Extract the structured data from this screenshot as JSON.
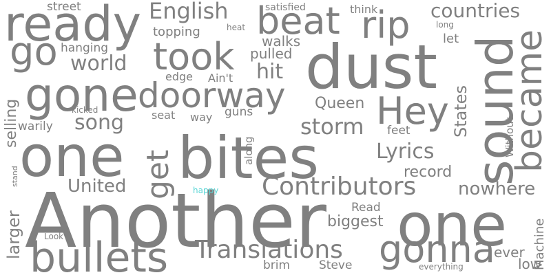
{
  "word_color": "#808080",
  "highlight_color": "#5bd6d6",
  "background_color": "#ffffff",
  "words": [
    {
      "text": "Another"
    },
    {
      "text": "one"
    },
    {
      "text": "bites"
    },
    {
      "text": "one"
    },
    {
      "text": "dust"
    },
    {
      "text": "sound"
    },
    {
      "text": "ready"
    },
    {
      "text": "gone"
    },
    {
      "text": "bullets"
    },
    {
      "text": "doorway"
    },
    {
      "text": "took"
    },
    {
      "text": "beat"
    },
    {
      "text": "gonna"
    },
    {
      "text": "became"
    },
    {
      "text": "Hey"
    },
    {
      "text": "rip"
    },
    {
      "text": "go"
    },
    {
      "text": "get"
    },
    {
      "text": "Contributors"
    },
    {
      "text": "Translations"
    },
    {
      "text": "English"
    },
    {
      "text": "storm"
    },
    {
      "text": "Lyrics"
    },
    {
      "text": "world"
    },
    {
      "text": "countries"
    },
    {
      "text": "song"
    },
    {
      "text": "United"
    },
    {
      "text": "hit"
    },
    {
      "text": "nowhere"
    },
    {
      "text": "Queen"
    },
    {
      "text": "States"
    },
    {
      "text": "record"
    },
    {
      "text": "biggest"
    },
    {
      "text": "larger"
    },
    {
      "text": "selling"
    },
    {
      "text": "walks"
    },
    {
      "text": "pulled"
    },
    {
      "text": "topping"
    },
    {
      "text": "hanging"
    },
    {
      "text": "warily"
    },
    {
      "text": "street"
    },
    {
      "text": "Ain't"
    },
    {
      "text": "guns"
    },
    {
      "text": "edge"
    },
    {
      "text": "seat"
    },
    {
      "text": "way"
    },
    {
      "text": "Read"
    },
    {
      "text": "Steve"
    },
    {
      "text": "ever"
    },
    {
      "text": "brim"
    },
    {
      "text": "feet"
    },
    {
      "text": "low"
    },
    {
      "text": "Machine"
    },
    {
      "text": "Without"
    },
    {
      "text": "along"
    },
    {
      "text": "think"
    },
    {
      "text": "let"
    },
    {
      "text": "satisfied"
    },
    {
      "text": "heat"
    },
    {
      "text": "long"
    },
    {
      "text": "kicked"
    },
    {
      "text": "stand"
    },
    {
      "text": "happy"
    },
    {
      "text": "Look"
    },
    {
      "text": "everything"
    }
  ]
}
